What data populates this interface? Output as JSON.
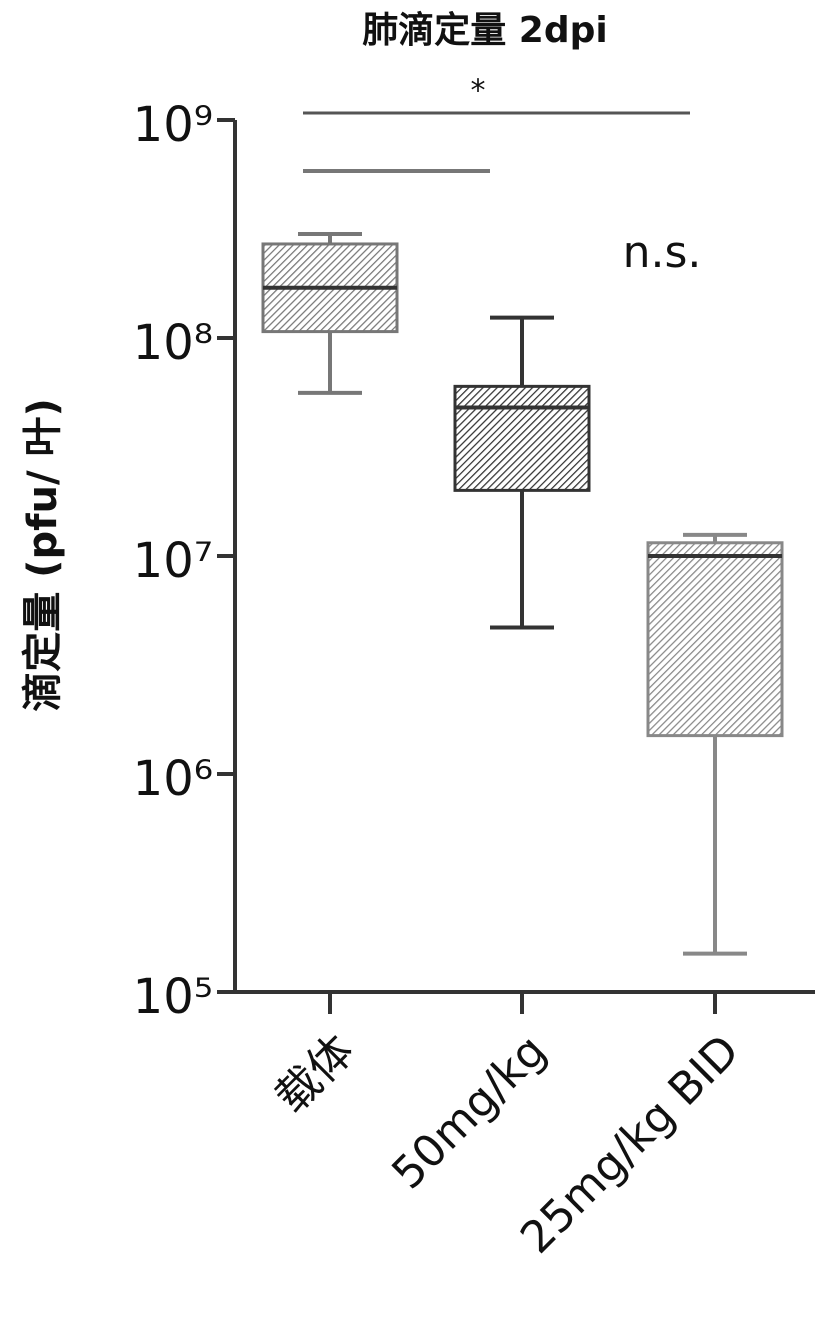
{
  "chart_data": {
    "type": "box",
    "title": "肺滴定量 2dpi",
    "y_label": "滴定量 (pfu/ 叶)",
    "categories": [
      "载体",
      "50mg/kg",
      "25mg/kg BID"
    ],
    "boxes": [
      {
        "whislo": 56000000,
        "q1": 107000000,
        "med": 170000000,
        "q3": 270000000,
        "whishi": 300000000
      },
      {
        "whislo": 4700000,
        "q1": 20000000,
        "med": 48000000,
        "q3": 60000000,
        "whishi": 124000000
      },
      {
        "whislo": 150000,
        "q1": 1500000,
        "med": 10000000,
        "q3": 11500000,
        "whishi": 12500000
      }
    ],
    "colors": [
      "#777777",
      "#333333",
      "#888888"
    ],
    "log_scale": true,
    "ylim": [
      100000,
      1000000000
    ],
    "yticks": [
      {
        "value": 100000,
        "label": "10⁵"
      },
      {
        "value": 1000000,
        "label": "10⁶"
      },
      {
        "value": 10000000,
        "label": "10⁷"
      },
      {
        "value": 100000000,
        "label": "10⁸"
      },
      {
        "value": 1000000000,
        "label": "10⁹"
      }
    ],
    "annotations": [
      "*",
      "n.s."
    ]
  }
}
